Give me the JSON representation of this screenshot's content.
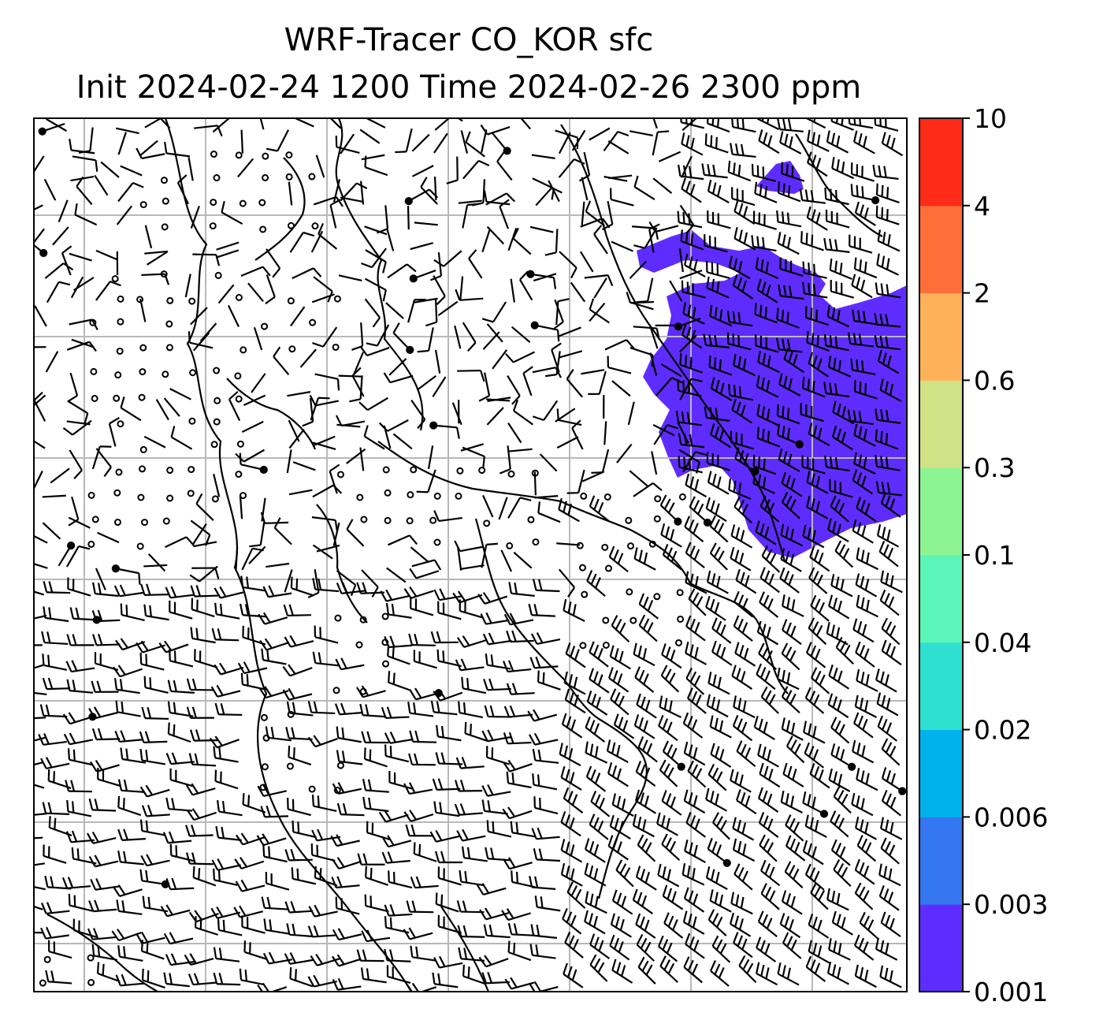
{
  "title": {
    "line1": "WRF-Tracer CO_KOR sfc",
    "line2": "Init 2024-02-24 1200 Time 2024-02-26 2300 ppm"
  },
  "colorbar": {
    "levels": [
      "0.001",
      "0.003",
      "0.006",
      "0.02",
      "0.04",
      "0.1",
      "0.3",
      "0.6",
      "2",
      "4",
      "10"
    ],
    "colors": [
      "#5f2cff",
      "#3477f0",
      "#00b2ec",
      "#2ee0d0",
      "#5cf5b8",
      "#8cf592",
      "#d1e185",
      "#ffb15a",
      "#ff6e38",
      "#ff2b19"
    ]
  },
  "map": {
    "field": "CO_KOR",
    "level": "sfc",
    "units": "ppm",
    "plume_color": "#5f2cff",
    "gridlines": "on",
    "wind_barbs": "on"
  }
}
